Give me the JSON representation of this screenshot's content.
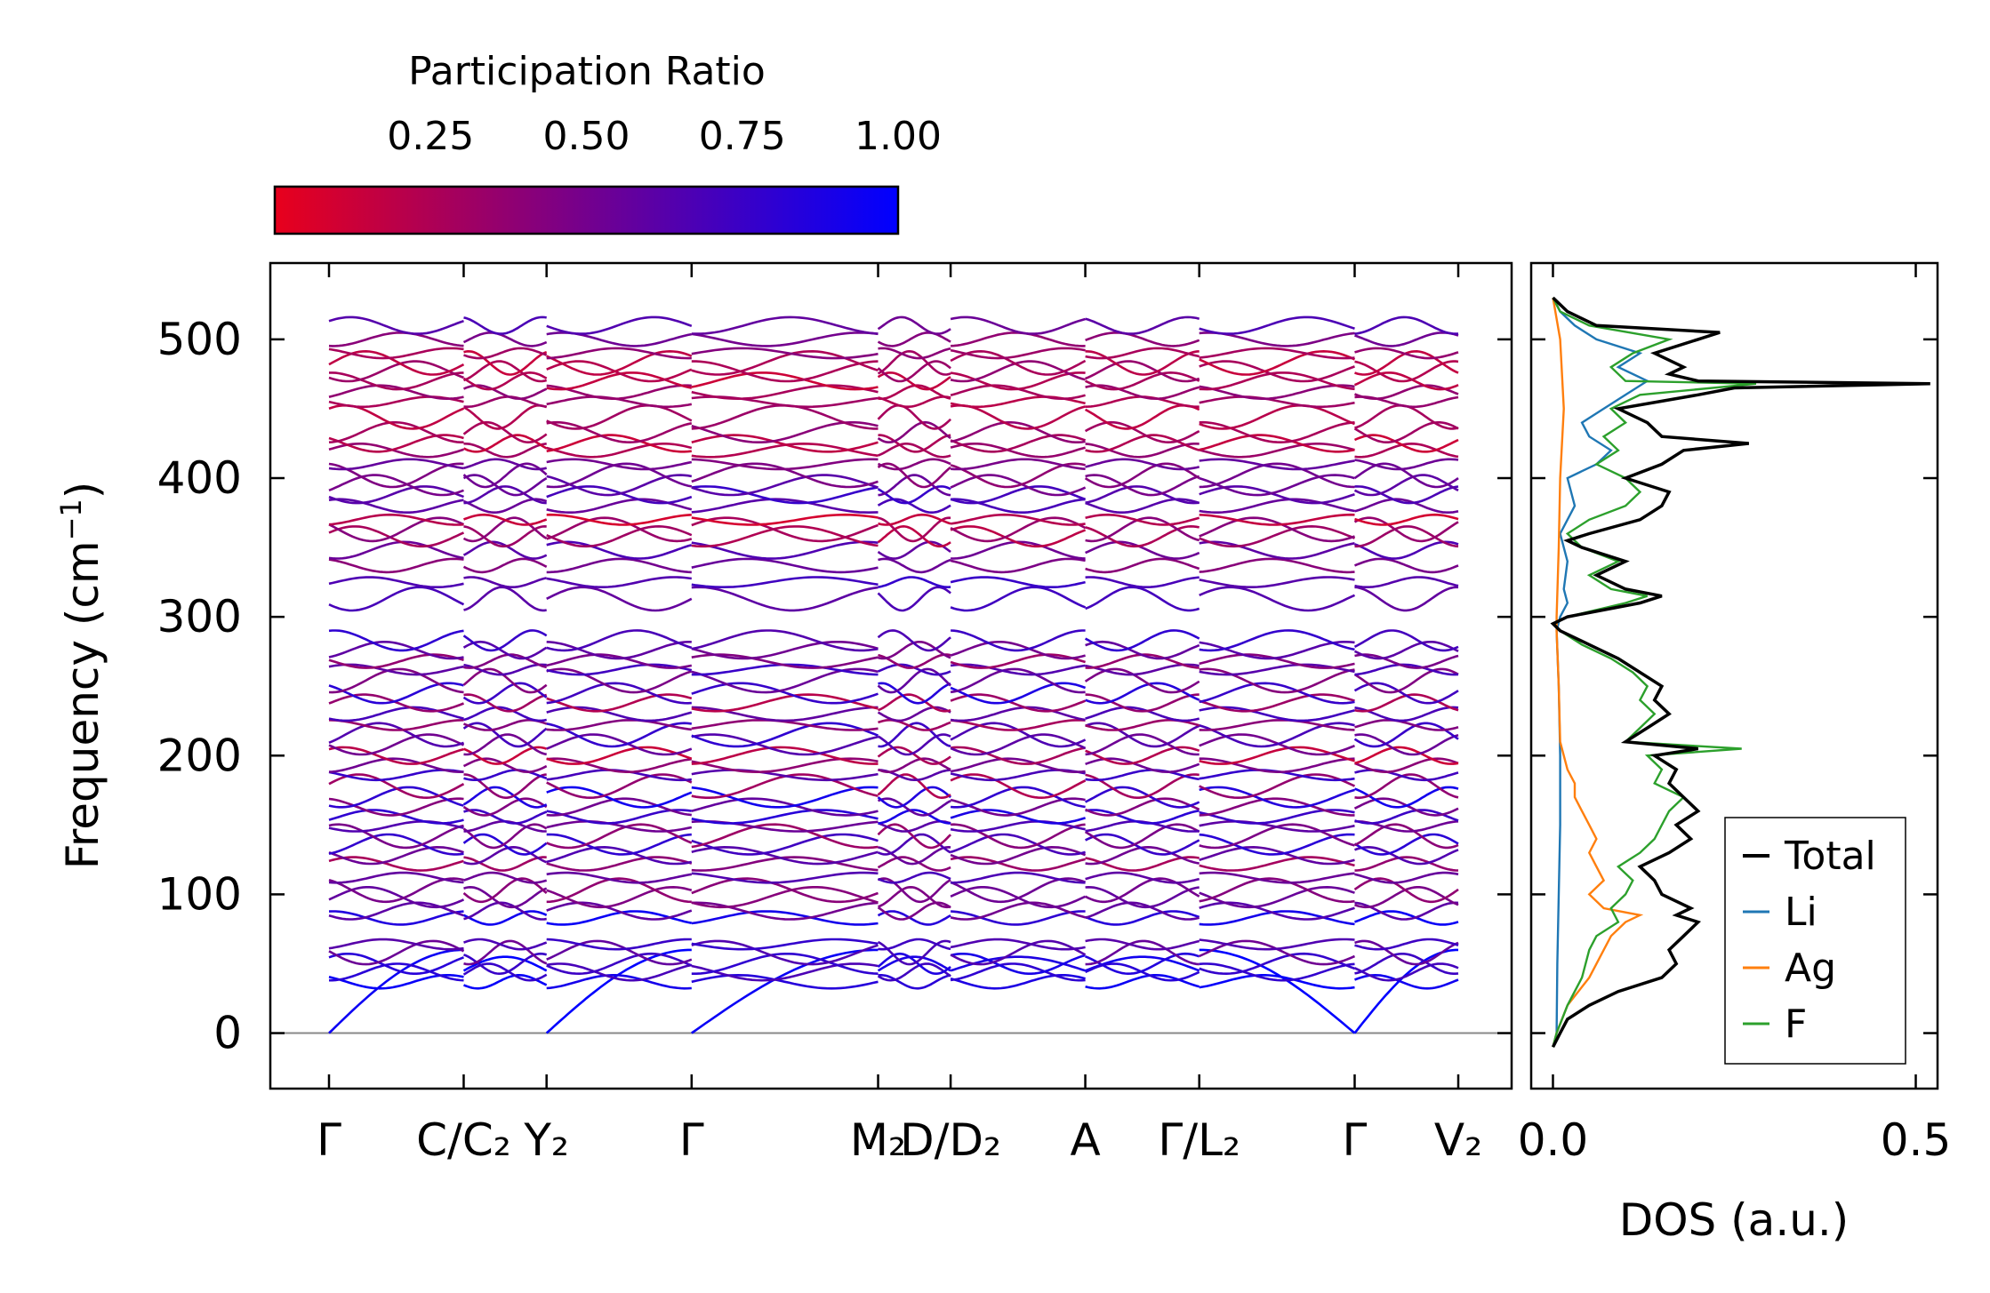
{
  "chart_data": [
    {
      "type": "line",
      "subtype": "phonon-band-structure",
      "ylabel": "Frequency (cm⁻¹)",
      "ylim": [
        -40,
        555
      ],
      "yticks": [
        0,
        100,
        200,
        300,
        400,
        500
      ],
      "ytick_labels": [
        "0",
        "100",
        "200",
        "300",
        "400",
        "500"
      ],
      "path_length": 10.9,
      "high_symmetry_points": [
        {
          "pos": 0.0,
          "label": "Γ"
        },
        {
          "pos": 1.3,
          "label": "C/C₂"
        },
        {
          "pos": 2.1,
          "label": "Y₂"
        },
        {
          "pos": 3.5,
          "label": "Γ"
        },
        {
          "pos": 5.3,
          "label": "M₂"
        },
        {
          "pos": 6.0,
          "label": "D/D₂"
        },
        {
          "pos": 7.3,
          "label": "A"
        },
        {
          "pos": 8.4,
          "label": "Γ/L₂"
        },
        {
          "pos": 9.9,
          "label": "Γ"
        },
        {
          "pos": 10.9,
          "label": "V₂"
        }
      ],
      "path_breaks": [
        3.5,
        8.4,
        9.9
      ],
      "zero_line": true,
      "colorbar": {
        "label": "Participation Ratio",
        "ticks": [
          0.25,
          0.5,
          0.75,
          1.0
        ],
        "tick_labels": [
          "0.25",
          "0.50",
          "0.75",
          "1.00"
        ],
        "range": [
          0.0,
          1.0
        ],
        "color_low": "#e8001c",
        "color_high": "#0000ff"
      },
      "band_levels": [
        0,
        37,
        44,
        50,
        58,
        64,
        83,
        88,
        98,
        103,
        112,
        122,
        128,
        136,
        142,
        149,
        156,
        163,
        170,
        178,
        186,
        193,
        200,
        208,
        215,
        222,
        230,
        238,
        245,
        254,
        262,
        268,
        276,
        283,
        313,
        325,
        337,
        348,
        358,
        363,
        370,
        380,
        388,
        395,
        402,
        410,
        420,
        425,
        433,
        444,
        455,
        462,
        470,
        477,
        483,
        490,
        500,
        510
      ],
      "band_pr": [
        0.95,
        0.9,
        0.75,
        0.82,
        0.6,
        0.7,
        0.88,
        0.55,
        0.5,
        0.45,
        0.62,
        0.35,
        0.58,
        0.75,
        0.4,
        0.6,
        0.82,
        0.5,
        0.86,
        0.3,
        0.7,
        0.45,
        0.2,
        0.58,
        0.72,
        0.36,
        0.64,
        0.28,
        0.8,
        0.5,
        0.68,
        0.4,
        0.55,
        0.72,
        0.65,
        0.7,
        0.48,
        0.6,
        0.25,
        0.35,
        0.15,
        0.62,
        0.7,
        0.55,
        0.45,
        0.5,
        0.3,
        0.2,
        0.35,
        0.25,
        0.28,
        0.32,
        0.2,
        0.3,
        0.22,
        0.35,
        0.45,
        0.6
      ]
    },
    {
      "type": "line",
      "subtype": "density-of-states",
      "xlabel": "DOS (a.u.)",
      "xlim": [
        -0.03,
        0.53
      ],
      "xticks": [
        0.0,
        0.5
      ],
      "xtick_labels": [
        "0.0",
        "0.5"
      ],
      "legend_position": "lower-right",
      "series": [
        {
          "name": "Total",
          "color": "#000000",
          "freq": [
            -10,
            0,
            10,
            20,
            30,
            40,
            50,
            60,
            70,
            80,
            85,
            90,
            100,
            110,
            120,
            130,
            140,
            150,
            160,
            170,
            180,
            190,
            200,
            205,
            210,
            220,
            230,
            240,
            250,
            260,
            270,
            280,
            290,
            295,
            300,
            310,
            315,
            320,
            330,
            340,
            350,
            355,
            360,
            370,
            380,
            390,
            400,
            410,
            420,
            425,
            430,
            440,
            450,
            460,
            465,
            468,
            470,
            475,
            480,
            490,
            500,
            505,
            510,
            520,
            530
          ],
          "values": [
            0.0,
            0.01,
            0.02,
            0.05,
            0.09,
            0.15,
            0.17,
            0.16,
            0.18,
            0.2,
            0.17,
            0.19,
            0.15,
            0.14,
            0.12,
            0.16,
            0.19,
            0.17,
            0.2,
            0.18,
            0.16,
            0.17,
            0.14,
            0.2,
            0.1,
            0.13,
            0.16,
            0.14,
            0.15,
            0.12,
            0.09,
            0.05,
            0.01,
            0.0,
            0.02,
            0.12,
            0.15,
            0.1,
            0.06,
            0.1,
            0.04,
            0.02,
            0.05,
            0.12,
            0.15,
            0.16,
            0.1,
            0.15,
            0.18,
            0.27,
            0.15,
            0.13,
            0.09,
            0.2,
            0.25,
            0.52,
            0.2,
            0.16,
            0.18,
            0.14,
            0.2,
            0.23,
            0.06,
            0.02,
            0.0
          ]
        },
        {
          "name": "Li",
          "color": "#1f77b4",
          "freq": [
            -10,
            0,
            50,
            100,
            150,
            200,
            250,
            290,
            300,
            310,
            320,
            340,
            360,
            380,
            400,
            410,
            420,
            430,
            440,
            450,
            460,
            470,
            480,
            490,
            500,
            510,
            520,
            530
          ],
          "values": [
            0.0,
            0.005,
            0.006,
            0.008,
            0.01,
            0.01,
            0.008,
            0.005,
            0.01,
            0.02,
            0.015,
            0.02,
            0.01,
            0.03,
            0.02,
            0.06,
            0.08,
            0.05,
            0.04,
            0.07,
            0.1,
            0.13,
            0.09,
            0.12,
            0.06,
            0.03,
            0.01,
            0.0
          ]
        },
        {
          "name": "Ag",
          "color": "#ff7f0e",
          "freq": [
            -10,
            0,
            20,
            40,
            60,
            70,
            80,
            85,
            90,
            100,
            110,
            120,
            130,
            140,
            150,
            160,
            170,
            180,
            190,
            200,
            210,
            250,
            290,
            300,
            350,
            400,
            450,
            500,
            530
          ],
          "values": [
            0.0,
            0.005,
            0.02,
            0.05,
            0.07,
            0.08,
            0.1,
            0.12,
            0.07,
            0.05,
            0.07,
            0.06,
            0.05,
            0.06,
            0.05,
            0.04,
            0.03,
            0.03,
            0.02,
            0.015,
            0.01,
            0.008,
            0.005,
            0.005,
            0.008,
            0.01,
            0.015,
            0.01,
            0.0
          ]
        },
        {
          "name": "F",
          "color": "#2ca02c",
          "freq": [
            -10,
            0,
            20,
            40,
            60,
            70,
            80,
            90,
            100,
            110,
            120,
            130,
            140,
            150,
            160,
            170,
            180,
            190,
            200,
            205,
            210,
            220,
            230,
            240,
            250,
            260,
            270,
            280,
            290,
            295,
            300,
            310,
            315,
            320,
            330,
            340,
            350,
            360,
            370,
            380,
            390,
            400,
            410,
            420,
            430,
            440,
            450,
            460,
            468,
            470,
            480,
            490,
            500,
            510,
            520,
            530
          ],
          "values": [
            0.0,
            0.005,
            0.02,
            0.04,
            0.05,
            0.06,
            0.09,
            0.08,
            0.1,
            0.11,
            0.09,
            0.12,
            0.14,
            0.15,
            0.16,
            0.18,
            0.14,
            0.15,
            0.13,
            0.26,
            0.1,
            0.12,
            0.14,
            0.12,
            0.13,
            0.11,
            0.08,
            0.04,
            0.01,
            0.0,
            0.02,
            0.1,
            0.13,
            0.08,
            0.05,
            0.09,
            0.04,
            0.02,
            0.05,
            0.1,
            0.12,
            0.1,
            0.06,
            0.09,
            0.07,
            0.1,
            0.08,
            0.12,
            0.28,
            0.1,
            0.08,
            0.11,
            0.16,
            0.05,
            0.01,
            0.0
          ]
        }
      ]
    }
  ]
}
